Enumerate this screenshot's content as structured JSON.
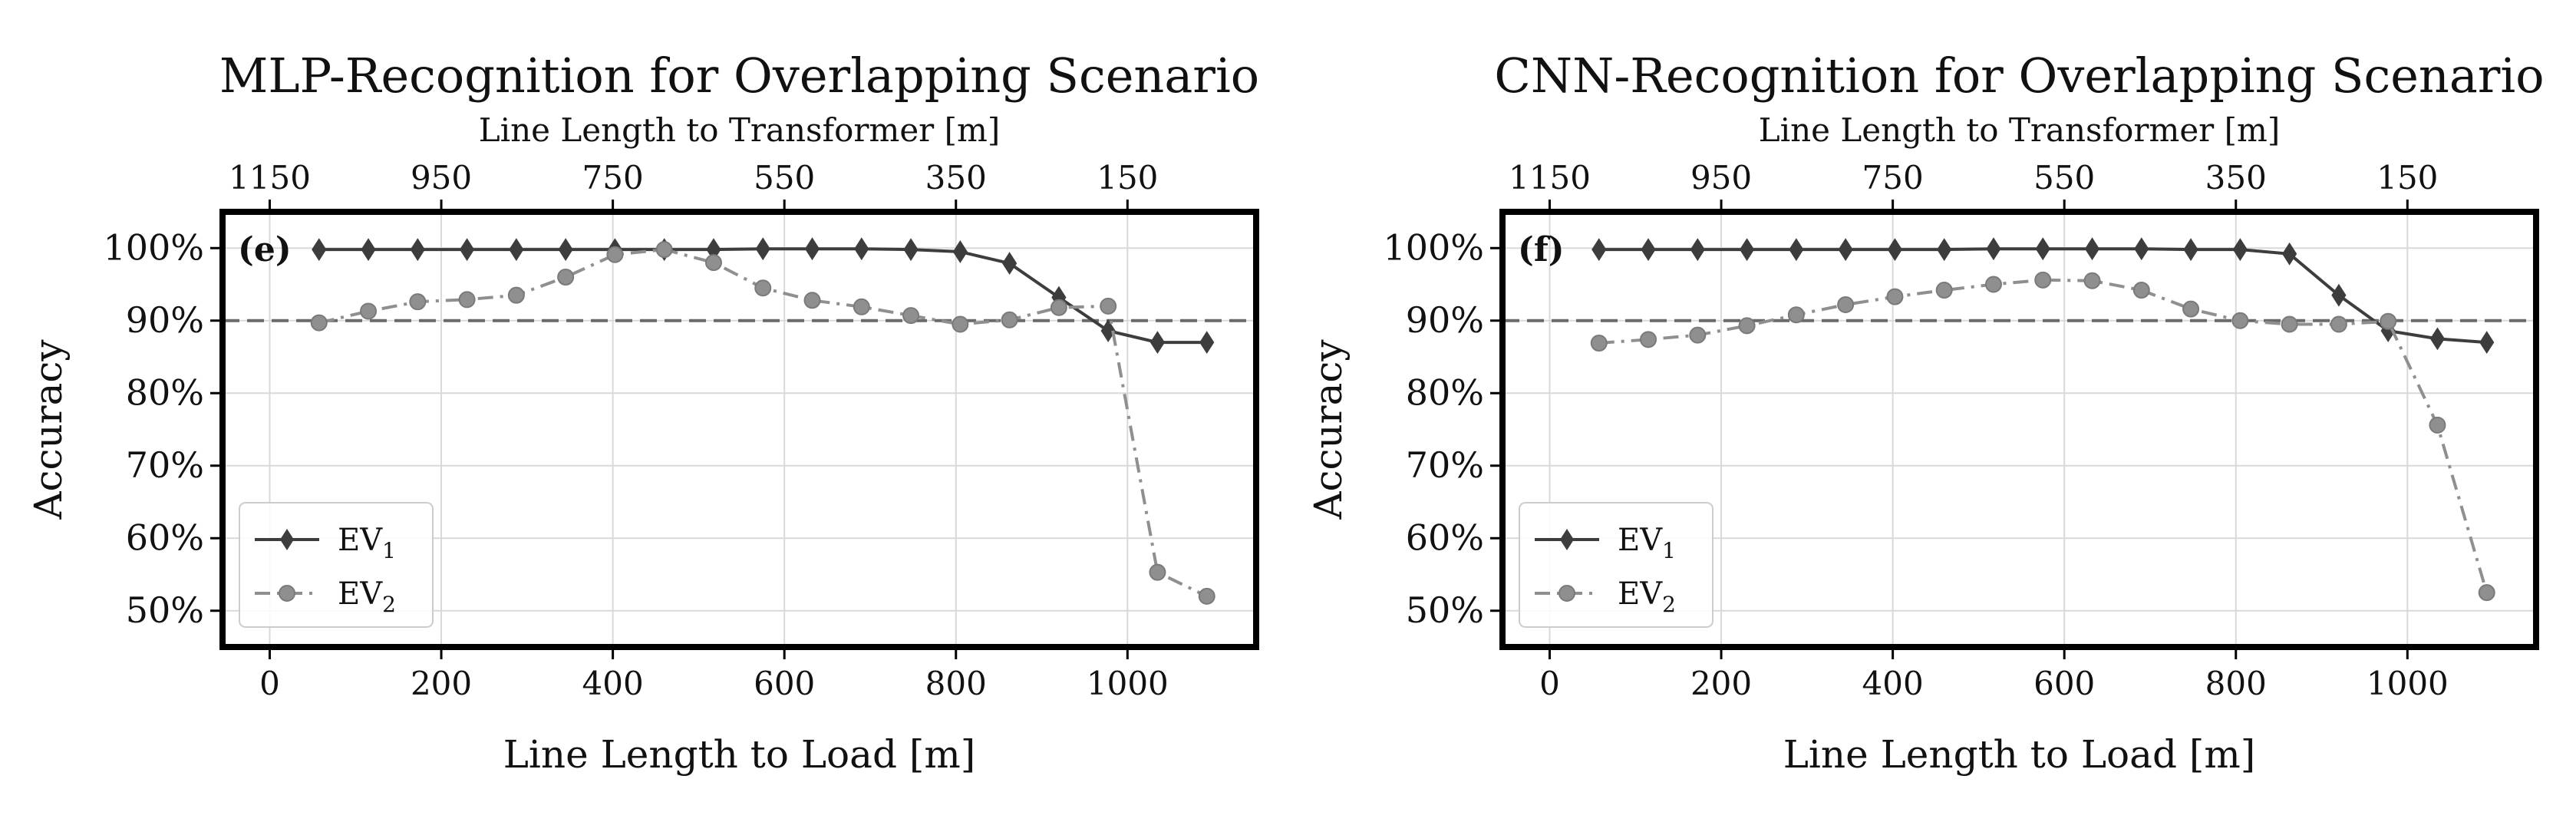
{
  "chart_data": [
    {
      "type": "line",
      "panel_label": "(e)",
      "title": "MLP-Recognition for Overlapping Scenario",
      "xlabel": "Line Length to Load [m]",
      "ylabel": "Accuracy",
      "top_xlabel": "Line Length to Transformer [m]",
      "xlim": [
        -55,
        1150
      ],
      "ylim": [
        45,
        105
      ],
      "x_ticks": [
        0,
        200,
        400,
        600,
        800,
        1000
      ],
      "y_ticks": [
        50,
        60,
        70,
        80,
        90,
        100
      ],
      "y_tick_labels": [
        "50%",
        "60%",
        "70%",
        "80%",
        "90%",
        "100%"
      ],
      "top_x_ticks": [
        1150,
        950,
        750,
        550,
        350,
        150
      ],
      "reference_line": 90,
      "grid": true,
      "legend_position": "lower-left",
      "x": [
        57.5,
        115,
        172.5,
        230,
        287.5,
        345,
        402.5,
        460,
        517.5,
        575,
        632.5,
        690,
        747.5,
        805,
        862.5,
        920,
        977.5,
        1035,
        1092.5
      ],
      "series": [
        {
          "name": "EV",
          "name_sub": "1",
          "marker": "diamond",
          "line": "solid",
          "color": "#3d3d3d",
          "values": [
            99.8,
            99.8,
            99.8,
            99.8,
            99.8,
            99.8,
            99.8,
            99.8,
            99.8,
            99.9,
            99.9,
            99.9,
            99.8,
            99.5,
            97.9,
            93.2,
            88.6,
            87.0,
            87.0
          ]
        },
        {
          "name": "EV",
          "name_sub": "2",
          "marker": "circle",
          "line": "dashdot",
          "color": "#8f8f8f",
          "values": [
            89.7,
            91.3,
            92.6,
            92.9,
            93.5,
            96.0,
            99.1,
            99.8,
            98.0,
            94.5,
            92.8,
            91.9,
            90.7,
            89.5,
            90.1,
            91.8,
            92.0,
            55.3,
            52.0
          ]
        }
      ]
    },
    {
      "type": "line",
      "panel_label": "(f)",
      "title": "CNN-Recognition for Overlapping Scenario",
      "xlabel": "Line Length to Load [m]",
      "ylabel": "Accuracy",
      "top_xlabel": "Line Length to Transformer [m]",
      "xlim": [
        -55,
        1150
      ],
      "ylim": [
        45,
        105
      ],
      "x_ticks": [
        0,
        200,
        400,
        600,
        800,
        1000
      ],
      "y_ticks": [
        50,
        60,
        70,
        80,
        90,
        100
      ],
      "y_tick_labels": [
        "50%",
        "60%",
        "70%",
        "80%",
        "90%",
        "100%"
      ],
      "top_x_ticks": [
        1150,
        950,
        750,
        550,
        350,
        150
      ],
      "reference_line": 90,
      "grid": true,
      "legend_position": "lower-left",
      "x": [
        57.5,
        115,
        172.5,
        230,
        287.5,
        345,
        402.5,
        460,
        517.5,
        575,
        632.5,
        690,
        747.5,
        805,
        862.5,
        920,
        977.5,
        1035,
        1092.5
      ],
      "series": [
        {
          "name": "EV",
          "name_sub": "1",
          "marker": "diamond",
          "line": "solid",
          "color": "#3d3d3d",
          "values": [
            99.8,
            99.8,
            99.8,
            99.8,
            99.8,
            99.8,
            99.8,
            99.8,
            99.9,
            99.9,
            99.9,
            99.9,
            99.8,
            99.8,
            99.2,
            93.5,
            88.6,
            87.5,
            87.0
          ]
        },
        {
          "name": "EV",
          "name_sub": "2",
          "marker": "circle",
          "line": "dashdot",
          "color": "#8f8f8f",
          "values": [
            86.9,
            87.4,
            88.0,
            89.3,
            90.8,
            92.2,
            93.3,
            94.2,
            95.0,
            95.6,
            95.5,
            94.2,
            91.6,
            90.0,
            89.5,
            89.5,
            89.9,
            75.6,
            52.5
          ]
        }
      ]
    }
  ]
}
